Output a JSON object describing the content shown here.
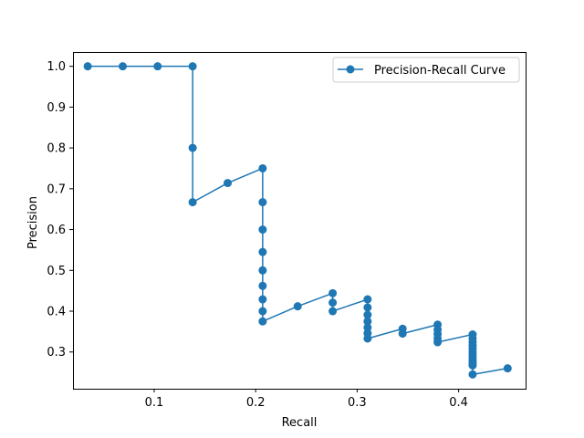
{
  "chart_data": {
    "type": "line",
    "xlabel": "Recall",
    "ylabel": "Precision",
    "xlim": [
      0.02,
      0.466
    ],
    "ylim": [
      0.21,
      1.035
    ],
    "xticks": [
      0.1,
      0.2,
      0.3,
      0.4
    ],
    "yticks": [
      0.3,
      0.4,
      0.5,
      0.6,
      0.7,
      0.8,
      0.9,
      1.0
    ],
    "xtick_labels": [
      "0.1",
      "0.2",
      "0.3",
      "0.4"
    ],
    "ytick_labels": [
      "0.3",
      "0.4",
      "0.5",
      "0.6",
      "0.7",
      "0.8",
      "0.9",
      "1.0"
    ],
    "legend_position": "top-right",
    "grid": false,
    "series": [
      {
        "name": "Precision-Recall Curve",
        "color": "#1f77b4",
        "marker": "circle",
        "x": [
          0.0345,
          0.069,
          0.1034,
          0.1379,
          0.1379,
          0.1379,
          0.1724,
          0.2069,
          0.2069,
          0.2069,
          0.2069,
          0.2069,
          0.2069,
          0.2069,
          0.2069,
          0.2069,
          0.2414,
          0.2759,
          0.2759,
          0.2759,
          0.3103,
          0.3103,
          0.3103,
          0.3103,
          0.3103,
          0.3103,
          0.3103,
          0.3448,
          0.3448,
          0.3793,
          0.3793,
          0.3793,
          0.3793,
          0.3793,
          0.4138,
          0.4138,
          0.4138,
          0.4138,
          0.4138,
          0.4138,
          0.4138,
          0.4138,
          0.4138,
          0.4138,
          0.4138,
          0.4138,
          0.4483
        ],
        "y": [
          1.0,
          1.0,
          1.0,
          1.0,
          0.8,
          0.667,
          0.714,
          0.75,
          0.667,
          0.6,
          0.545,
          0.5,
          0.462,
          0.429,
          0.4,
          0.375,
          0.412,
          0.444,
          0.421,
          0.4,
          0.429,
          0.409,
          0.391,
          0.375,
          0.36,
          0.346,
          0.333,
          0.357,
          0.345,
          0.367,
          0.355,
          0.344,
          0.333,
          0.324,
          0.343,
          0.333,
          0.324,
          0.316,
          0.308,
          0.3,
          0.293,
          0.286,
          0.279,
          0.273,
          0.267,
          0.245,
          0.26
        ]
      }
    ]
  }
}
